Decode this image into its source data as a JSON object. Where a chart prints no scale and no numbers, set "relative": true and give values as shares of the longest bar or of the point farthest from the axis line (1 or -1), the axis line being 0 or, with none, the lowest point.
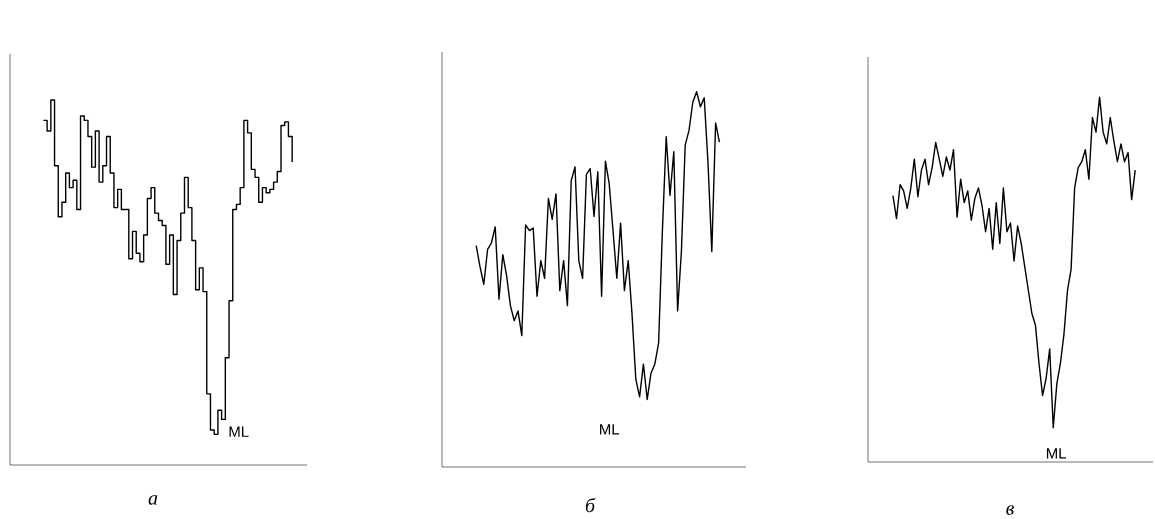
{
  "chart_data": [
    {
      "type": "step",
      "relative": true,
      "title": "а",
      "annotations": [
        "ML"
      ],
      "color": "#000000",
      "categories": [
        null,
        null,
        null,
        null,
        null,
        null,
        null,
        null,
        null,
        null,
        null,
        null,
        null,
        null,
        null,
        null,
        null,
        null,
        null,
        null,
        null,
        null,
        null,
        null,
        null,
        null,
        null,
        null,
        null,
        null,
        null,
        null,
        null,
        null,
        null,
        null,
        null,
        null,
        null,
        null,
        null,
        null,
        null,
        null,
        null,
        null,
        null,
        null,
        null,
        null,
        null,
        null,
        null,
        null,
        null,
        null,
        null,
        null,
        null,
        null,
        null,
        null,
        null,
        null,
        null,
        null,
        null,
        null,
        null,
        null,
        null,
        null,
        null,
        null,
        null,
        null,
        null,
        null,
        null,
        null,
        null
      ],
      "values": [
        null,
        null,
        null,
        null,
        null,
        null,
        null,
        null,
        null,
        0.944,
        0.915,
        1.0,
        0.82,
        0.68,
        0.72,
        0.8,
        0.76,
        0.78,
        0.7,
        0.956,
        0.944,
        0.9,
        0.816,
        0.915,
        0.775,
        0.82,
        0.9,
        0.8,
        0.705,
        0.755,
        0.7,
        0.7,
        0.565,
        0.64,
        0.58,
        0.557,
        0.63,
        0.73,
        0.76,
        0.69,
        0.67,
        0.656,
        0.55,
        0.63,
        0.467,
        0.615,
        0.69,
        0.788,
        0.705,
        0.615,
        0.48,
        0.54,
        0.475,
        0.195,
        0.096,
        0.084,
        0.15,
        0.125,
        0.294,
        0.45,
        0.7,
        0.714,
        0.76,
        0.944,
        0.91,
        0.81,
        0.788,
        0.72,
        0.76,
        0.746,
        0.755,
        0.775,
        0.804,
        0.93,
        0.94,
        0.9,
        0.83,
        null,
        null,
        null,
        null
      ]
    },
    {
      "type": "line",
      "relative": true,
      "title": "б",
      "annotations": [
        "ML"
      ],
      "color": "#000000",
      "categories": [
        null,
        null,
        null,
        null,
        null,
        null,
        null,
        null,
        null,
        null,
        null,
        null,
        null,
        null,
        null,
        null,
        null,
        null,
        null,
        null,
        null,
        null,
        null,
        null,
        null,
        null,
        null,
        null,
        null,
        null,
        null,
        null,
        null,
        null,
        null,
        null,
        null,
        null,
        null,
        null,
        null,
        null,
        null,
        null,
        null,
        null,
        null,
        null,
        null,
        null,
        null,
        null,
        null,
        null,
        null,
        null,
        null,
        null,
        null,
        null,
        null,
        null,
        null,
        null,
        null,
        null,
        null,
        null,
        null,
        null,
        null,
        null,
        null,
        null,
        null,
        null,
        null,
        null,
        null,
        null,
        null
      ],
      "values": [
        null,
        null,
        null,
        null,
        null,
        null,
        null,
        null,
        null,
        0.59,
        0.534,
        0.487,
        0.58,
        0.597,
        0.64,
        0.447,
        0.566,
        0.51,
        0.43,
        0.39,
        0.416,
        0.35,
        0.645,
        0.63,
        0.637,
        0.455,
        0.55,
        0.503,
        0.716,
        0.66,
        0.728,
        0.47,
        0.55,
        0.43,
        0.763,
        0.8,
        0.55,
        0.503,
        0.78,
        0.795,
        0.668,
        0.787,
        0.455,
        0.815,
        0.755,
        0.63,
        0.503,
        0.65,
        0.47,
        0.55,
        0.408,
        0.234,
        0.187,
        0.274,
        0.18,
        0.25,
        0.274,
        0.33,
        0.63,
        0.88,
        0.724,
        0.84,
        0.416,
        0.574,
        0.858,
        0.897,
        0.972,
        1.0,
        0.96,
        0.984,
        0.81,
        0.574,
        0.917,
        0.866,
        null,
        null,
        null,
        null,
        null,
        null,
        null
      ]
    },
    {
      "type": "line",
      "relative": true,
      "title": "в",
      "annotations": [
        "ML"
      ],
      "color": "#000000",
      "categories": [
        null,
        null,
        null,
        null,
        null,
        null,
        null,
        null,
        null,
        null,
        null,
        null,
        null,
        null,
        null,
        null,
        null,
        null,
        null,
        null,
        null,
        null,
        null,
        null,
        null,
        null,
        null,
        null,
        null,
        null,
        null,
        null,
        null,
        null,
        null,
        null,
        null,
        null,
        null,
        null,
        null,
        null,
        null,
        null,
        null,
        null,
        null,
        null,
        null,
        null,
        null,
        null,
        null,
        null,
        null,
        null,
        null,
        null,
        null,
        null,
        null,
        null,
        null,
        null,
        null,
        null,
        null,
        null,
        null,
        null,
        null,
        null,
        null,
        null,
        null,
        null,
        null,
        null,
        null,
        null,
        null
      ],
      "values": [
        null,
        null,
        null,
        null,
        null,
        null,
        null,
        0.73,
        0.667,
        0.76,
        0.743,
        0.695,
        0.75,
        0.83,
        0.727,
        0.8,
        0.83,
        0.76,
        0.807,
        0.876,
        0.83,
        0.783,
        0.836,
        0.8,
        0.856,
        0.671,
        0.775,
        0.711,
        0.743,
        0.663,
        0.723,
        0.751,
        0.703,
        0.631,
        0.695,
        0.583,
        0.711,
        0.599,
        0.751,
        0.631,
        0.655,
        0.551,
        0.647,
        0.599,
        0.535,
        0.471,
        0.407,
        0.375,
        0.27,
        0.182,
        0.23,
        0.31,
        0.094,
        0.214,
        0.27,
        0.35,
        0.471,
        0.527,
        0.751,
        0.807,
        0.823,
        0.856,
        0.775,
        0.944,
        0.904,
        1.0,
        0.904,
        0.872,
        0.944,
        0.88,
        0.823,
        0.872,
        0.823,
        0.848,
        0.719,
        0.8,
        null,
        null,
        null,
        null,
        null
      ]
    }
  ]
}
